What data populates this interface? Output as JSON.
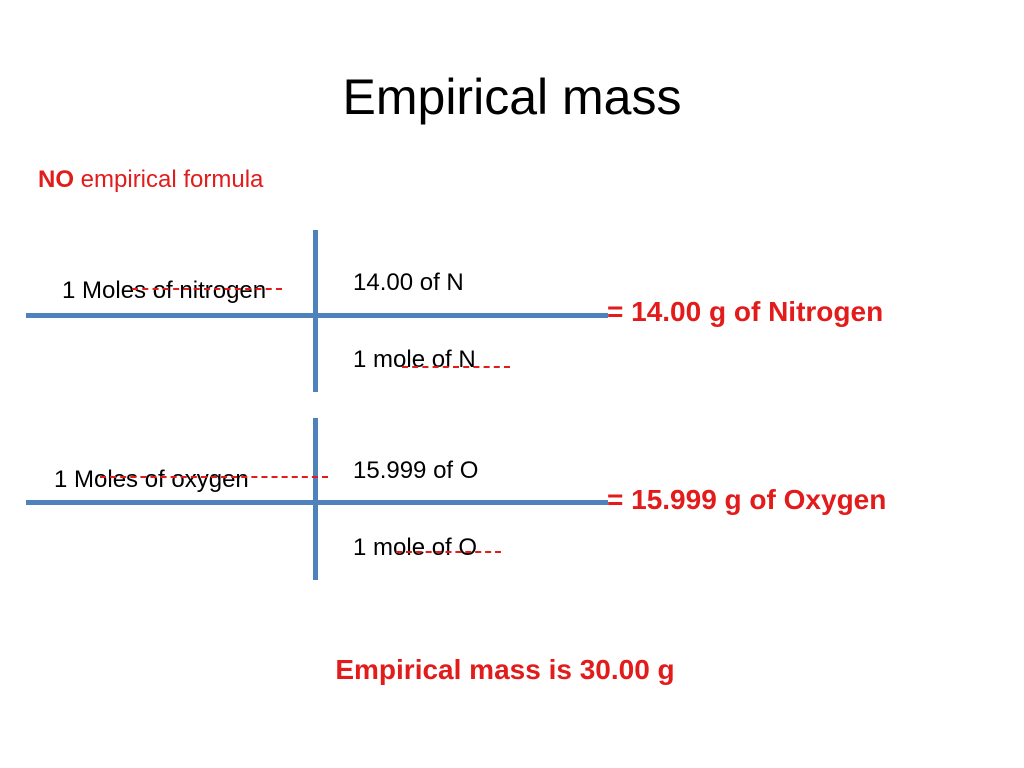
{
  "title": "Empirical mass",
  "subtitle": {
    "strong": "NO",
    "rest": "empirical formula"
  },
  "colors": {
    "accent_red": "#e21b1b",
    "grid_blue": "#4f81bd"
  },
  "nitrogen": {
    "given": "1 Moles of nitrogen",
    "numerator": "14.00 of N",
    "denominator": "1 mole of N",
    "result": "= 14.00 g of Nitrogen"
  },
  "oxygen": {
    "given": "1 Moles of oxygen",
    "numerator": "15.999 of O",
    "denominator": "1 mole of O",
    "result": "=  15.999 g of Oxygen"
  },
  "conclusion": "Empirical mass is 30.00 g"
}
